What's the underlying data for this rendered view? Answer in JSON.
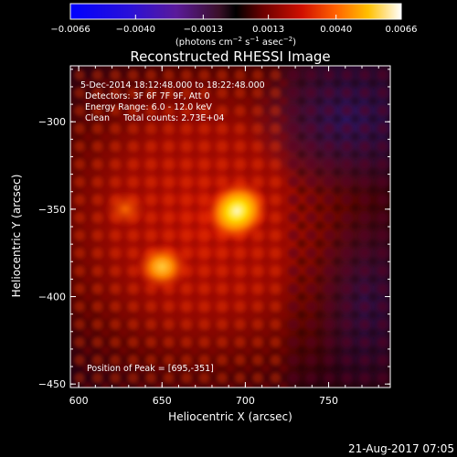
{
  "chart_data": {
    "type": "heatmap",
    "title": "Reconstructed RHESSI Image",
    "xlabel": "Heliocentric X (arcsec)",
    "ylabel": "Heliocentric Y (arcsec)",
    "xlim": [
      595,
      787
    ],
    "ylim": [
      -452,
      -268
    ],
    "xticks": [
      600,
      650,
      700,
      750
    ],
    "yticks": [
      -300,
      -350,
      -400,
      -450
    ],
    "xtick_labels": [
      "600",
      "650",
      "700",
      "750"
    ],
    "ytick_labels": [
      "−300",
      "−350",
      "−400",
      "−450"
    ],
    "colorbar": {
      "range": [
        -0.0066,
        0.0066
      ],
      "ticks": [
        -0.0066,
        -0.004,
        -0.0013,
        0.0013,
        0.004,
        0.0066
      ],
      "tick_labels": [
        "−0.0066",
        "−0.0040",
        "−0.0013",
        "0.0013",
        "0.0040",
        "0.0066"
      ],
      "unit_prefix": "(photons cm",
      "unit_exp1": "−2",
      "unit_mid1": " s",
      "unit_exp2": "−1",
      "unit_mid2": " asec",
      "unit_exp3": "−2",
      "unit_suffix": ")",
      "colormap": "blue-purple-red-yellow-white"
    },
    "annotations": {
      "time_range": "5-Dec-2014 18:12:48.000 to 18:22:48.000",
      "detectors": "Detectors: 3F 6F 7F 9F, Att 0",
      "energy_range": "Energy Range: 6.0 - 12.0 keV",
      "clean": "Clean     Total counts: 2.73E+04",
      "peak_position": "Position of Peak = [695,-351]"
    },
    "sources": [
      {
        "x": 695,
        "y": -351,
        "intensity": 0.0066
      },
      {
        "x": 650,
        "y": -383,
        "intensity": 0.0045
      },
      {
        "x": 628,
        "y": -350,
        "intensity": 0.0028
      }
    ]
  },
  "footer": {
    "date": "21-Aug-2017 07:05"
  }
}
